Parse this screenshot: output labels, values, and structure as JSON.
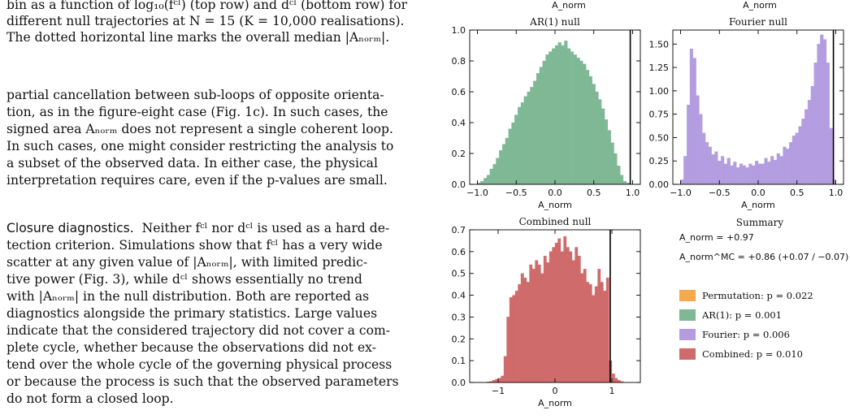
{
  "text": {
    "caption": [
      "bin as a function of log₁₀(fᶜˡ) (top row) and dᶜˡ (bottom row) for",
      "different null trajectories at N = 15 (K = 10,000 realisations).",
      "The dotted horizontal line marks the overall median |Aₙₒᵣₘ|."
    ],
    "para1": [
      "partial cancellation between sub-loops of opposite orienta-",
      "tion, as in the figure-eight case (Fig. 1c). In such cases, the",
      "signed area Aₙₒᵣₘ does not represent a single coherent loop.",
      "In such cases, one might consider restricting the analysis to",
      "a subset of the observed data. In either case, the physical",
      "interpretation requires care, even if the p-values are small."
    ],
    "para2_heading": "Closure diagnostics.",
    "para2": [
      "Neither fᶜˡ nor dᶜˡ is used as a hard de-",
      "tection criterion. Simulations show that fᶜˡ has a very wide",
      "scatter at any given value of |Aₙₒᵣₘ|, with limited predic-",
      "tive power (Fig. 3), while dᶜˡ shows essentially no trend",
      "with |Aₙₒᵣₘ| in the null distribution. Both are reported as",
      "diagnostics alongside the primary statistics. Large values",
      "indicate that the considered trajectory did not cover a com-",
      "plete cycle, whether because the observations did not ex-",
      "tend over the whole cycle of the governing physical process",
      "or because the process is such that the observed parameters",
      "do not form a closed loop."
    ]
  },
  "top_labels": {
    "left": "A_norm",
    "right": "A_norm"
  },
  "colors": {
    "ar1": "#7fb894",
    "fourier": "#b39de0",
    "combined": "#cf6b6b",
    "permutation": "#f5a94c"
  },
  "chart_data": [
    {
      "type": "bar",
      "title": "AR(1) null",
      "xlabel": "A_norm",
      "xlim": [
        -1.1,
        1.1
      ],
      "ylim": [
        0,
        1.0
      ],
      "xticks": [
        -1.0,
        -0.5,
        0.0,
        0.5,
        1.0
      ],
      "xtick_labels": [
        "−1.0",
        "−0.5",
        "0.0",
        "0.5",
        "1.0"
      ],
      "yticks": [
        0.0,
        0.2,
        0.4,
        0.6,
        0.8,
        1.0
      ],
      "ytick_labels": [
        "0.0",
        "0.2",
        "0.4",
        "0.6",
        "0.8",
        "1.0"
      ],
      "observed_line": 0.97,
      "bins": {
        "x0": -1.0,
        "width": 0.04
      },
      "values": [
        0.01,
        0.02,
        0.04,
        0.06,
        0.1,
        0.13,
        0.17,
        0.22,
        0.26,
        0.3,
        0.36,
        0.4,
        0.45,
        0.5,
        0.53,
        0.57,
        0.6,
        0.63,
        0.67,
        0.72,
        0.76,
        0.8,
        0.84,
        0.86,
        0.88,
        0.9,
        0.92,
        0.9,
        0.93,
        0.88,
        0.86,
        0.84,
        0.82,
        0.8,
        0.78,
        0.74,
        0.7,
        0.65,
        0.6,
        0.55,
        0.49,
        0.42,
        0.35,
        0.27,
        0.2,
        0.12,
        0.06,
        0.02,
        0.01,
        0.0
      ]
    },
    {
      "type": "bar",
      "title": "Fourier null",
      "xlabel": "A_norm",
      "xlim": [
        -1.1,
        1.1
      ],
      "ylim": [
        0,
        1.65
      ],
      "xticks": [
        -1.0,
        -0.5,
        0.0,
        0.5,
        1.0
      ],
      "xtick_labels": [
        "−1.0",
        "−0.5",
        "0.0",
        "0.5",
        "1.0"
      ],
      "yticks": [
        0.0,
        0.25,
        0.5,
        0.75,
        1.0,
        1.25,
        1.5
      ],
      "ytick_labels": [
        "0.00",
        "0.25",
        "0.50",
        "0.75",
        "1.00",
        "1.25",
        "1.50"
      ],
      "observed_line": 0.97,
      "bins": {
        "x0": -1.0,
        "width": 0.04
      },
      "values": [
        0.05,
        0.3,
        0.85,
        1.45,
        1.35,
        0.95,
        0.75,
        0.55,
        0.45,
        0.4,
        0.32,
        0.35,
        0.25,
        0.3,
        0.22,
        0.28,
        0.2,
        0.24,
        0.18,
        0.22,
        0.2,
        0.18,
        0.22,
        0.2,
        0.25,
        0.22,
        0.22,
        0.28,
        0.24,
        0.3,
        0.26,
        0.33,
        0.3,
        0.4,
        0.38,
        0.45,
        0.52,
        0.55,
        0.62,
        0.7,
        0.8,
        0.9,
        1.05,
        1.3,
        1.5,
        1.6,
        1.55,
        1.3,
        0.6,
        0.05
      ]
    },
    {
      "type": "bar",
      "title": "Combined null",
      "xlabel": "A_norm",
      "xlim": [
        -1.5,
        1.5
      ],
      "ylim": [
        0,
        0.7
      ],
      "xticks": [
        -1,
        0,
        1
      ],
      "xtick_labels": [
        "−1",
        "0",
        "1"
      ],
      "yticks": [
        0.0,
        0.1,
        0.2,
        0.3,
        0.4,
        0.5,
        0.6,
        0.7
      ],
      "ytick_labels": [
        "0.0",
        "0.1",
        "0.2",
        "0.3",
        "0.4",
        "0.5",
        "0.6",
        "0.7"
      ],
      "observed_line": 0.97,
      "bins": {
        "x0": -1.2,
        "width": 0.05
      },
      "values": [
        0.003,
        0.005,
        0.01,
        0.015,
        0.02,
        0.03,
        0.12,
        0.3,
        0.39,
        0.4,
        0.42,
        0.45,
        0.5,
        0.48,
        0.46,
        0.54,
        0.52,
        0.56,
        0.54,
        0.5,
        0.58,
        0.55,
        0.6,
        0.62,
        0.64,
        0.66,
        0.6,
        0.67,
        0.62,
        0.6,
        0.56,
        0.62,
        0.58,
        0.5,
        0.52,
        0.46,
        0.45,
        0.4,
        0.44,
        0.52,
        0.46,
        0.42,
        0.48,
        0.1,
        0.04,
        0.02,
        0.01,
        0.005
      ]
    }
  ],
  "summary": {
    "title": "Summary",
    "a_norm_label": "A_norm = +0.97",
    "a_mc_label": "A_norm^MC = +0.86 (+0.07 / −0.07)",
    "legend": [
      {
        "label": "Permutation:  p = 0.022",
        "color_key": "permutation"
      },
      {
        "label": "AR(1):  p = 0.001",
        "color_key": "ar1"
      },
      {
        "label": "Fourier:  p = 0.006",
        "color_key": "fourier"
      },
      {
        "label": "Combined:  p = 0.010",
        "color_key": "combined"
      }
    ]
  }
}
